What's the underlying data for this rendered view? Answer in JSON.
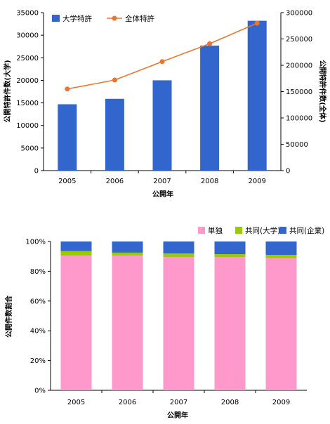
{
  "chart_data": [
    {
      "type": "bar",
      "categories": [
        "2005",
        "2006",
        "2007",
        "2008",
        "2009"
      ],
      "series": [
        {
          "name": "大学特許",
          "kind": "bar",
          "axis": "left",
          "color": "#3366cc",
          "values": [
            14700,
            15900,
            20000,
            27700,
            33200
          ]
        },
        {
          "name": "全体特許",
          "kind": "line",
          "axis": "right",
          "color": "#e8772b",
          "values": [
            155000,
            172000,
            207000,
            241000,
            280000
          ]
        }
      ],
      "xlabel": "公開年",
      "ylabel": "公開特許件数(大学)",
      "ylabel_right": "公開特許件数(全体)",
      "ylim": [
        0,
        35000
      ],
      "yticks": [
        "0",
        "5000",
        "10000",
        "15000",
        "20000",
        "25000",
        "30000",
        "35000"
      ],
      "ylim_right": [
        0,
        300000
      ],
      "yticks_right": [
        "0",
        "50000",
        "100000",
        "150000",
        "200000",
        "250000",
        "300000"
      ],
      "legend": "top-left",
      "grid": false
    },
    {
      "type": "bar",
      "stacked": true,
      "percent": true,
      "categories": [
        "2005",
        "2006",
        "2007",
        "2008",
        "2009"
      ],
      "series": [
        {
          "name": "単独",
          "color": "#ff99cc",
          "values": [
            90.5,
            90.5,
            89.5,
            89.5,
            88.8
          ]
        },
        {
          "name": "共同(大学)",
          "color": "#99cc00",
          "values": [
            3.0,
            2.0,
            2.5,
            2.0,
            2.2
          ]
        },
        {
          "name": "共同(企業)",
          "color": "#3366cc",
          "values": [
            6.5,
            7.5,
            8.0,
            8.5,
            9.0
          ]
        }
      ],
      "xlabel": "公開年",
      "ylabel": "公開件数割合",
      "ylim": [
        0,
        100
      ],
      "yticks": [
        "0%",
        "20%",
        "40%",
        "60%",
        "80%",
        "100%"
      ],
      "legend": "top-right",
      "grid": false
    }
  ]
}
